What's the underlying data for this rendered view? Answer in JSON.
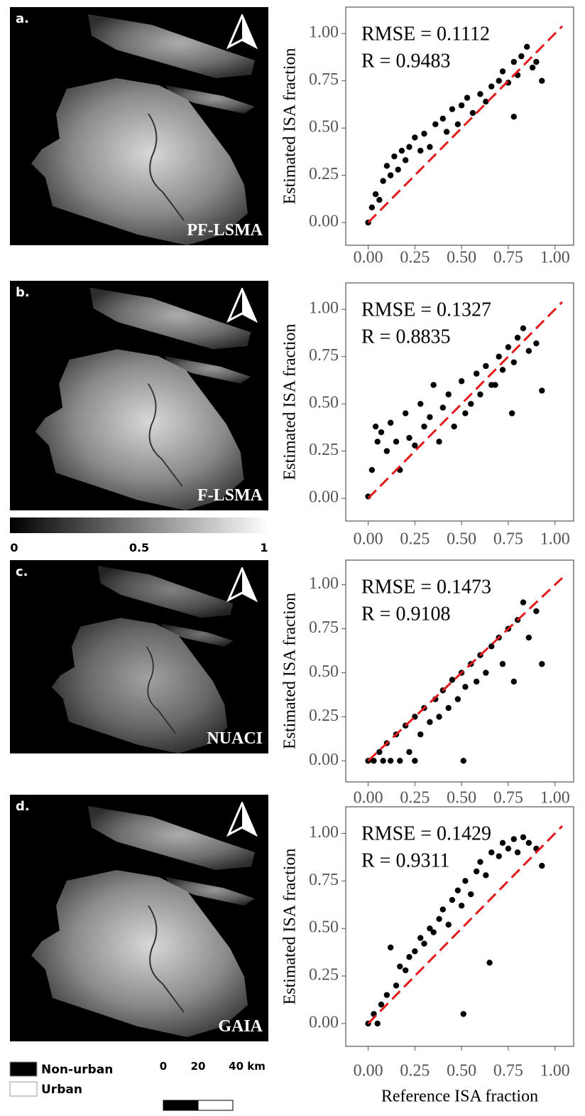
{
  "maps": [
    {
      "label": "a.",
      "name": "PF-LSMA"
    },
    {
      "label": "b.",
      "name": "F-LSMA"
    },
    {
      "label": "c.",
      "name": "NUACI"
    },
    {
      "label": "d.",
      "name": "GAIA"
    }
  ],
  "colorbar": {
    "ticks": [
      0,
      0.5,
      1
    ]
  },
  "legend": {
    "items": [
      "Non-urban",
      "Urban"
    ]
  },
  "scale_bar": {
    "ticks": [
      0,
      20,
      {
        "value": 40,
        "label": "40 km"
      }
    ]
  },
  "chart_data": [
    {
      "type": "scatter",
      "ylabel": "Estimated ISA fraction",
      "annotations": [
        "RMSE = 0.1112",
        "R = 0.9483"
      ],
      "xlim": [
        -0.12,
        1.1
      ],
      "ylim": [
        -0.12,
        1.14
      ],
      "xticks": [
        {
          "value": 0,
          "label": "0.00"
        },
        {
          "value": 0.25,
          "label": "0.25"
        },
        {
          "value": 0.5,
          "label": "0.50"
        },
        {
          "value": 0.75,
          "label": "0.75"
        },
        {
          "value": 1,
          "label": "1.00"
        }
      ],
      "yticks": [
        {
          "value": 0,
          "label": "0.00"
        },
        {
          "value": 0.25,
          "label": "0.25"
        },
        {
          "value": 0.5,
          "label": "0.50"
        },
        {
          "value": 0.75,
          "label": "0.75"
        },
        {
          "value": 1,
          "label": "1.00"
        }
      ],
      "identity_line": true,
      "identity_color": "#e31a1c",
      "x": [
        0,
        0.02,
        0.04,
        0.06,
        0.08,
        0.1,
        0.12,
        0.14,
        0.16,
        0.18,
        0.2,
        0.22,
        0.25,
        0.28,
        0.3,
        0.33,
        0.36,
        0.4,
        0.42,
        0.45,
        0.48,
        0.5,
        0.53,
        0.56,
        0.6,
        0.63,
        0.66,
        0.7,
        0.72,
        0.75,
        0.78,
        0.8,
        0.82,
        0.85,
        0.88,
        0.9,
        0.93,
        0.78
      ],
      "series": [
        {
          "color": "#000000",
          "values": [
            0,
            0.08,
            0.15,
            0.12,
            0.22,
            0.3,
            0.25,
            0.35,
            0.28,
            0.38,
            0.33,
            0.4,
            0.45,
            0.38,
            0.47,
            0.4,
            0.52,
            0.55,
            0.48,
            0.6,
            0.52,
            0.62,
            0.66,
            0.58,
            0.68,
            0.64,
            0.72,
            0.75,
            0.8,
            0.74,
            0.85,
            0.78,
            0.88,
            0.93,
            0.82,
            0.85,
            0.75,
            0.56
          ]
        }
      ]
    },
    {
      "type": "scatter",
      "ylabel": "Estimated ISA fraction",
      "annotations": [
        "RMSE = 0.1327",
        "R = 0.8835"
      ],
      "xlim": [
        -0.12,
        1.1
      ],
      "ylim": [
        -0.12,
        1.14
      ],
      "xticks": [
        {
          "value": 0,
          "label": "0.00"
        },
        {
          "value": 0.25,
          "label": "0.25"
        },
        {
          "value": 0.5,
          "label": "0.50"
        },
        {
          "value": 0.75,
          "label": "0.75"
        },
        {
          "value": 1,
          "label": "1.00"
        }
      ],
      "yticks": [
        {
          "value": 0,
          "label": "0.00"
        },
        {
          "value": 0.25,
          "label": "0.25"
        },
        {
          "value": 0.5,
          "label": "0.50"
        },
        {
          "value": 0.75,
          "label": "0.75"
        },
        {
          "value": 1,
          "label": "1.00"
        }
      ],
      "identity_line": true,
      "identity_color": "#e31a1c",
      "x": [
        0,
        0.02,
        0.04,
        0.05,
        0.07,
        0.1,
        0.12,
        0.15,
        0.17,
        0.2,
        0.22,
        0.25,
        0.28,
        0.3,
        0.33,
        0.35,
        0.38,
        0.4,
        0.43,
        0.46,
        0.5,
        0.52,
        0.55,
        0.58,
        0.6,
        0.63,
        0.66,
        0.7,
        0.72,
        0.75,
        0.78,
        0.8,
        0.83,
        0.86,
        0.9,
        0.93,
        0.77,
        0.68
      ],
      "series": [
        {
          "color": "#000000",
          "values": [
            0.01,
            0.15,
            0.38,
            0.3,
            0.35,
            0.25,
            0.4,
            0.3,
            0.15,
            0.45,
            0.32,
            0.28,
            0.5,
            0.38,
            0.43,
            0.6,
            0.3,
            0.48,
            0.55,
            0.38,
            0.62,
            0.45,
            0.5,
            0.66,
            0.55,
            0.7,
            0.6,
            0.75,
            0.68,
            0.8,
            0.72,
            0.85,
            0.9,
            0.78,
            0.82,
            0.57,
            0.45,
            0.6
          ]
        }
      ]
    },
    {
      "type": "scatter",
      "ylabel": "Estimated ISA fraction",
      "annotations": [
        "RMSE = 0.1473",
        "R = 0.9108"
      ],
      "xlim": [
        -0.12,
        1.1
      ],
      "ylim": [
        -0.12,
        1.14
      ],
      "xticks": [
        {
          "value": 0,
          "label": "0.00"
        },
        {
          "value": 0.25,
          "label": "0.25"
        },
        {
          "value": 0.5,
          "label": "0.50"
        },
        {
          "value": 0.75,
          "label": "0.75"
        },
        {
          "value": 1,
          "label": "1.00"
        }
      ],
      "yticks": [
        {
          "value": 0,
          "label": "0.00"
        },
        {
          "value": 0.25,
          "label": "0.25"
        },
        {
          "value": 0.5,
          "label": "0.50"
        },
        {
          "value": 0.75,
          "label": "0.75"
        },
        {
          "value": 1,
          "label": "1.00"
        }
      ],
      "identity_line": true,
      "identity_color": "#e31a1c",
      "x": [
        0,
        0.03,
        0.06,
        0.08,
        0.1,
        0.12,
        0.15,
        0.17,
        0.2,
        0.22,
        0.25,
        0.28,
        0.3,
        0.33,
        0.36,
        0.38,
        0.4,
        0.43,
        0.45,
        0.48,
        0.5,
        0.52,
        0.55,
        0.58,
        0.6,
        0.63,
        0.66,
        0.7,
        0.72,
        0.75,
        0.78,
        0.8,
        0.83,
        0.86,
        0.9,
        0.93,
        0.51,
        0.25
      ],
      "series": [
        {
          "color": "#000000",
          "values": [
            0,
            0,
            0.05,
            0,
            0.1,
            0,
            0.15,
            0,
            0.2,
            0.05,
            0.25,
            0.15,
            0.3,
            0.22,
            0.35,
            0.25,
            0.4,
            0.3,
            0.46,
            0.35,
            0.5,
            0.42,
            0.55,
            0.45,
            0.6,
            0.5,
            0.65,
            0.7,
            0.55,
            0.75,
            0.45,
            0.8,
            0.9,
            0.7,
            0.85,
            0.55,
            0,
            0
          ]
        }
      ]
    },
    {
      "type": "scatter",
      "ylabel": "Estimated ISA fraction",
      "xlabel": "Reference ISA fraction",
      "annotations": [
        "RMSE = 0.1429",
        "R = 0.9311"
      ],
      "xlim": [
        -0.12,
        1.1
      ],
      "ylim": [
        -0.12,
        1.14
      ],
      "xticks": [
        {
          "value": 0,
          "label": "0.00"
        },
        {
          "value": 0.25,
          "label": "0.25"
        },
        {
          "value": 0.5,
          "label": "0.50"
        },
        {
          "value": 0.75,
          "label": "0.75"
        },
        {
          "value": 1,
          "label": "1.00"
        }
      ],
      "yticks": [
        {
          "value": 0,
          "label": "0.00"
        },
        {
          "value": 0.25,
          "label": "0.25"
        },
        {
          "value": 0.5,
          "label": "0.50"
        },
        {
          "value": 0.75,
          "label": "0.75"
        },
        {
          "value": 1,
          "label": "1.00"
        }
      ],
      "identity_line": true,
      "identity_color": "#e31a1c",
      "x": [
        0,
        0.03,
        0.05,
        0.07,
        0.1,
        0.12,
        0.15,
        0.17,
        0.2,
        0.22,
        0.25,
        0.28,
        0.3,
        0.33,
        0.35,
        0.38,
        0.4,
        0.43,
        0.45,
        0.48,
        0.5,
        0.52,
        0.55,
        0.58,
        0.6,
        0.63,
        0.66,
        0.7,
        0.72,
        0.75,
        0.78,
        0.8,
        0.83,
        0.86,
        0.9,
        0.93,
        0.51,
        0.65
      ],
      "series": [
        {
          "color": "#000000",
          "values": [
            0,
            0.05,
            0,
            0.1,
            0.15,
            0.4,
            0.2,
            0.3,
            0.28,
            0.35,
            0.38,
            0.45,
            0.42,
            0.5,
            0.48,
            0.55,
            0.6,
            0.52,
            0.65,
            0.7,
            0.62,
            0.75,
            0.68,
            0.8,
            0.85,
            0.78,
            0.9,
            0.88,
            0.95,
            0.92,
            0.97,
            0.9,
            0.98,
            0.95,
            0.92,
            0.83,
            0.05,
            0.32
          ]
        }
      ]
    }
  ]
}
